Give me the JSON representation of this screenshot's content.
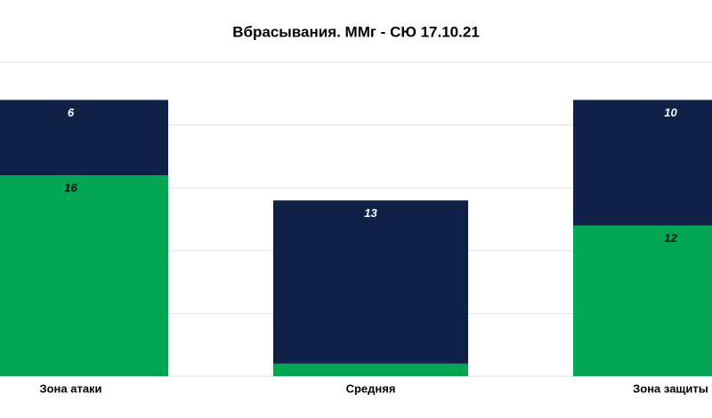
{
  "chart_data": {
    "type": "stacked-bar",
    "title": "Вбрасывания. ММг - СЮ 17.10.21",
    "categories": [
      "Зона атаки",
      "Средняя",
      "Зона защиты"
    ],
    "series": [
      {
        "color": "#00a651",
        "values": [
          16,
          1,
          12
        ]
      },
      {
        "color": "#0f2146",
        "values": [
          6,
          13,
          10
        ]
      }
    ],
    "ylim": [
      0,
      25
    ],
    "yticks": [
      0,
      5,
      10,
      15,
      20,
      25
    ],
    "grid": true
  }
}
